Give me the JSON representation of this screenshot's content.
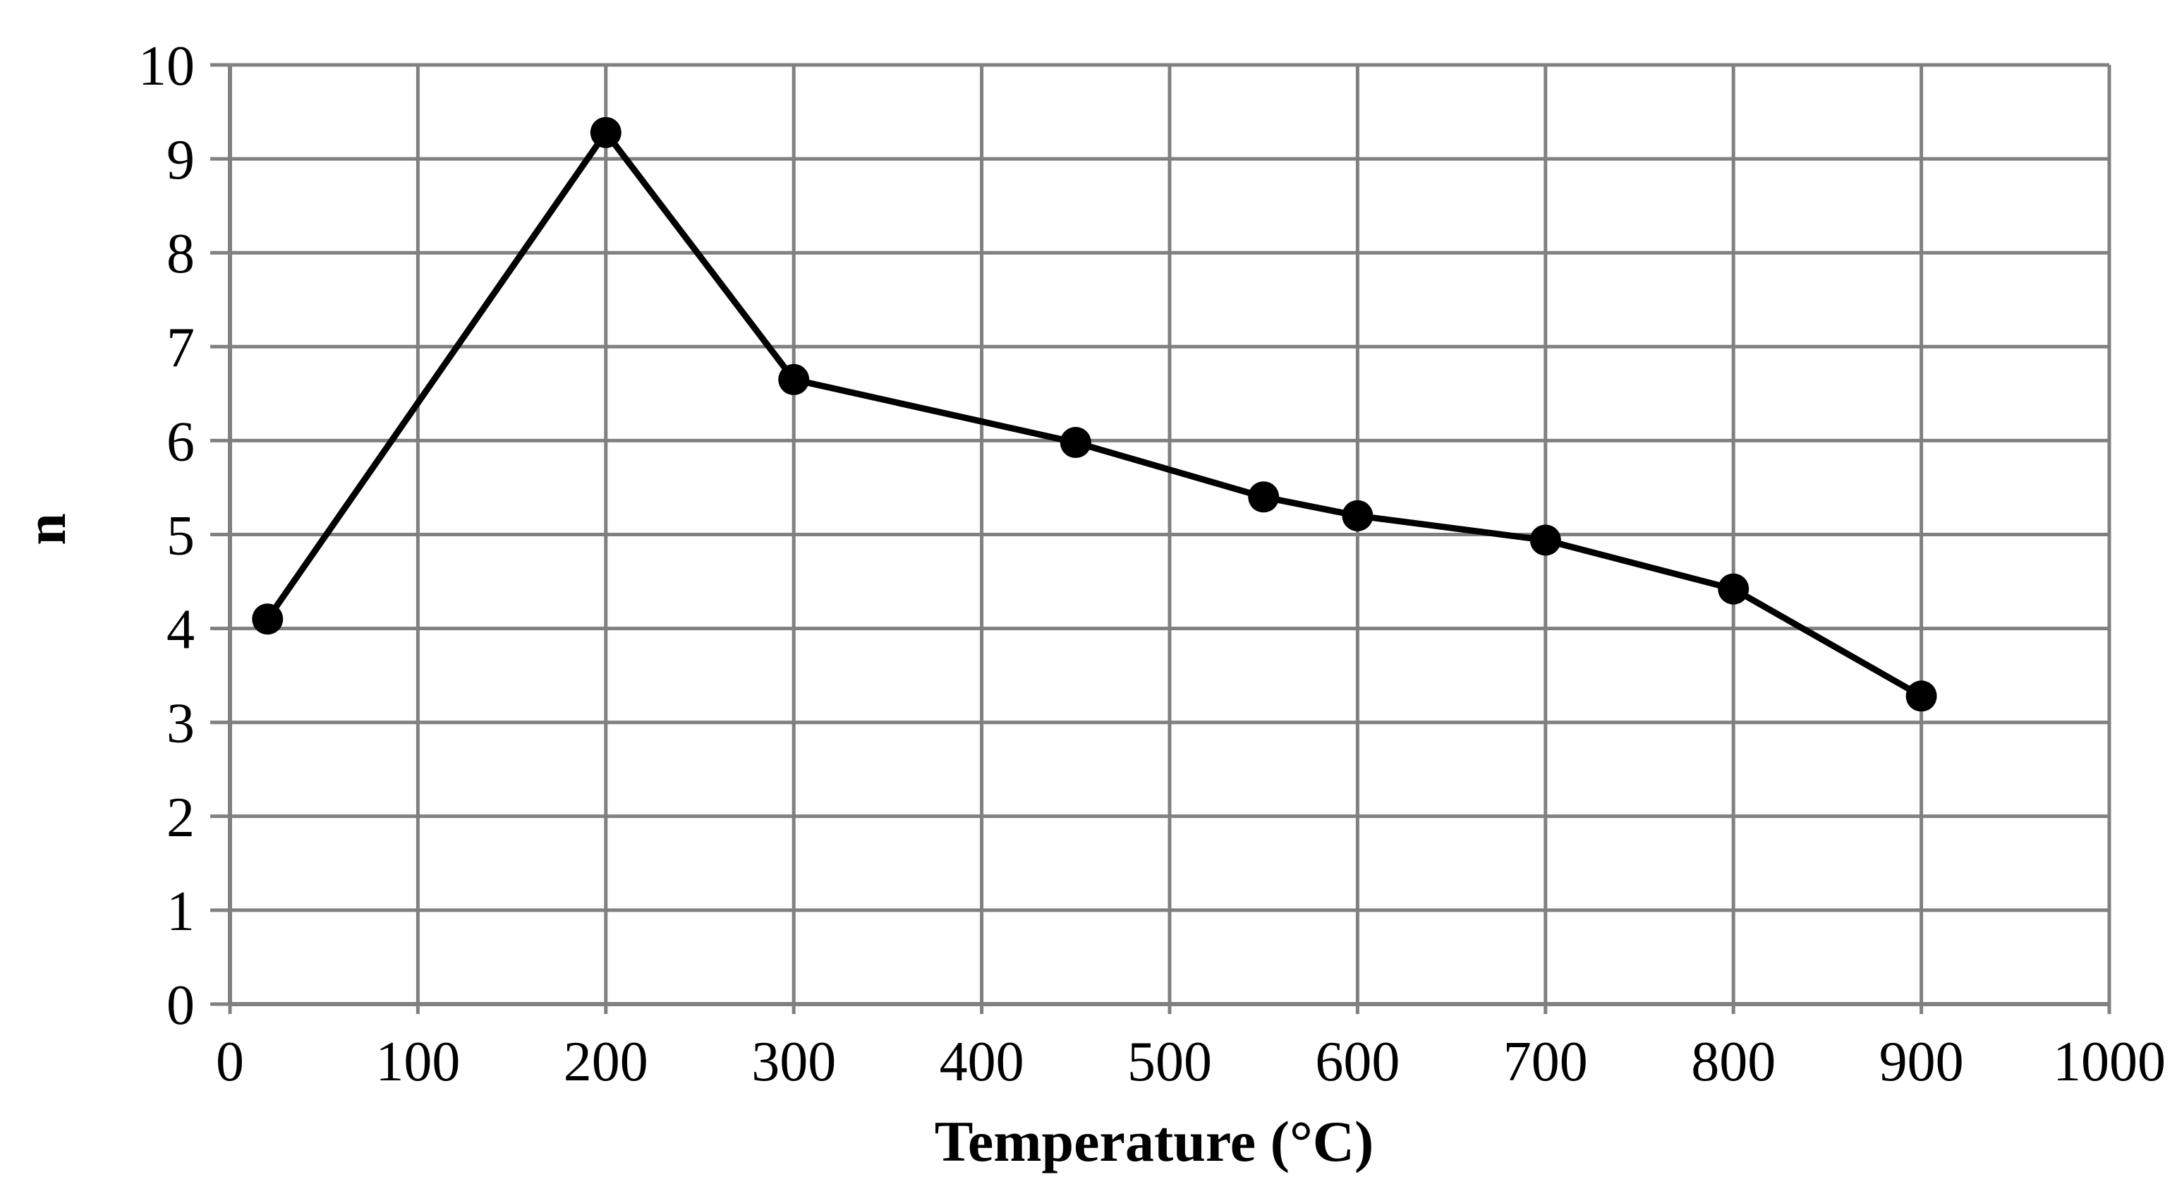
{
  "chart_data": {
    "type": "line",
    "title": "",
    "xlabel": "Temperature (°C)",
    "ylabel": "n",
    "xlim": [
      0,
      1000
    ],
    "ylim": [
      0,
      10
    ],
    "xticks": [
      "0",
      "100",
      "200",
      "300",
      "400",
      "500",
      "600",
      "700",
      "800",
      "900",
      "1000"
    ],
    "yticks": [
      "0",
      "1",
      "2",
      "3",
      "4",
      "5",
      "6",
      "7",
      "8",
      "9",
      "10"
    ],
    "grid": true,
    "legend": "none",
    "series": [
      {
        "name": "n",
        "color": "#000000",
        "marker": "circle",
        "x": [
          20,
          200,
          300,
          450,
          550,
          600,
          700,
          800,
          900
        ],
        "y": [
          4.1,
          9.28,
          6.65,
          5.98,
          5.4,
          5.2,
          4.94,
          4.42,
          3.28
        ]
      }
    ]
  },
  "colors": {
    "grid": "#808080",
    "axis": "#808080",
    "line": "#000000",
    "background": "#ffffff"
  }
}
